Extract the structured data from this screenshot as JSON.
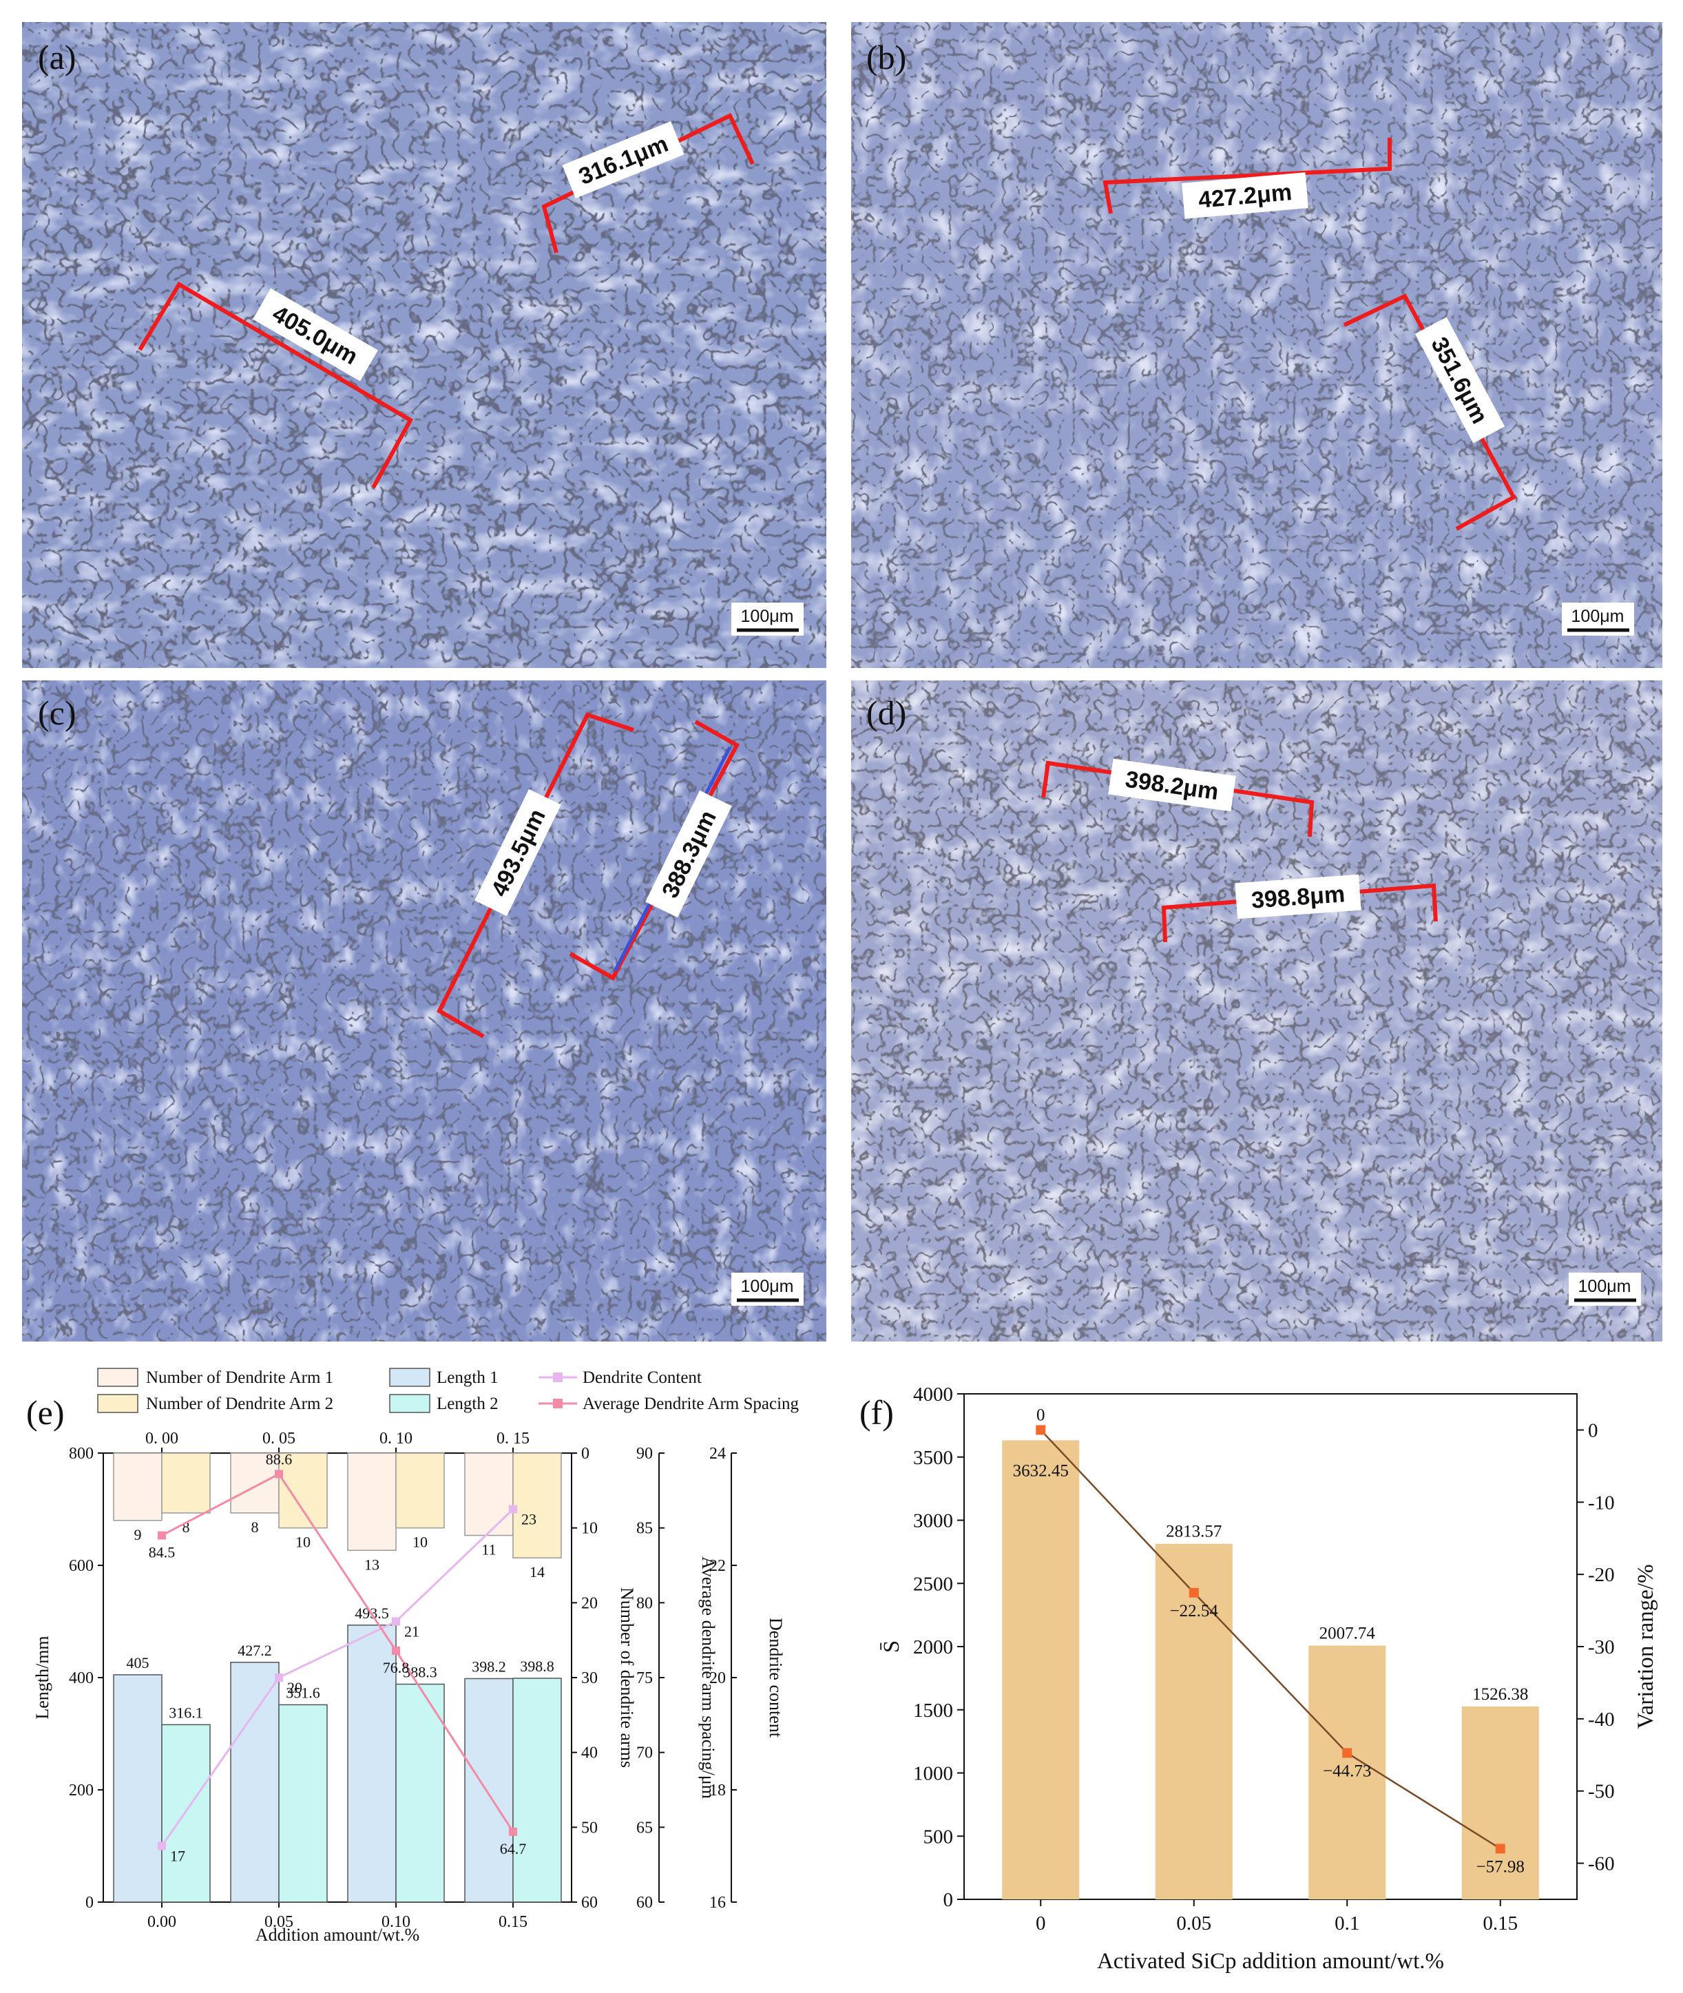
{
  "colors": {
    "micro_base": "#8e9ccb",
    "bracket": "#ee1c1c",
    "count1": "#fdf1e8",
    "count2": "#fdf0c9",
    "length1": "#d3e7f6",
    "length2": "#c8f6f2",
    "content_line": "#e8b6ee",
    "spacing_line": "#f58aa6",
    "f_bar": "#edc98f",
    "f_line": "#7b4a26",
    "f_marker": "#f26a2a"
  },
  "micrographs": [
    {
      "letter": "(a)",
      "scale": "100μm",
      "measurements": [
        "316.1μm",
        "405.0μm"
      ]
    },
    {
      "letter": "(b)",
      "scale": "100μm",
      "measurements": [
        "427.2μm",
        "351.6μm"
      ]
    },
    {
      "letter": "(c)",
      "scale": "100μm",
      "measurements": [
        "493.5μm",
        "388.3μm"
      ]
    },
    {
      "letter": "(d)",
      "scale": "100μm",
      "measurements": [
        "398.2μm",
        "398.8μm"
      ]
    }
  ],
  "chart_data": [
    {
      "panel": "(e)",
      "type": "bar",
      "categories": [
        "0.00",
        "0.05",
        "0.10",
        "0.15"
      ],
      "top_categories": [
        "0. 00",
        "0. 05",
        "0. 10",
        "0. 15"
      ],
      "xlabel": "Addition amount/wt.%",
      "ylabel_left": "Length/mm",
      "ylabel_counts": "Number of dendrite arms",
      "ylabel_spacing": "Average dendrite arm spacing/μm",
      "ylabel_content": "Dendrite content",
      "ylim_left": [
        0,
        800
      ],
      "ylim_counts": [
        0,
        60
      ],
      "ylim_spacing": [
        60,
        90
      ],
      "ylim_content": [
        16,
        24
      ],
      "left_ticks": [
        "0",
        "200",
        "400",
        "600",
        "800"
      ],
      "count_ticks": [
        "0",
        "10",
        "20",
        "30",
        "40",
        "50",
        "60"
      ],
      "spacing_ticks": [
        "60",
        "65",
        "70",
        "75",
        "80",
        "85",
        "90"
      ],
      "content_ticks": [
        "16",
        "18",
        "20",
        "22",
        "24"
      ],
      "legend": [
        "Number of Dendrite Arm 1",
        "Number of Dendrite Arm 2",
        "Length 1",
        "Length 2",
        "Dendrite Content",
        "Average Dendrite Arm Spacing"
      ],
      "count_series": [
        {
          "name": "Number of Dendrite Arm 1",
          "values": [
            9,
            8,
            13,
            11
          ]
        },
        {
          "name": "Number of Dendrite Arm 2",
          "values": [
            8,
            10,
            10,
            14
          ]
        }
      ],
      "length_series": [
        {
          "name": "Length 1",
          "values": [
            405,
            427.2,
            493.5,
            398.2
          ]
        },
        {
          "name": "Length 2",
          "values": [
            316.1,
            351.6,
            388.3,
            398.8
          ]
        }
      ],
      "length_labels": [
        [
          "405",
          "316.1"
        ],
        [
          "427.2",
          "351.6"
        ],
        [
          "493.5",
          "388.3"
        ],
        [
          "398.2",
          "398.8"
        ]
      ],
      "count_labels": [
        [
          "9",
          "8"
        ],
        [
          "8",
          "10"
        ],
        [
          "13",
          "10"
        ],
        [
          "11",
          "14"
        ]
      ],
      "content_series": {
        "name": "Dendrite Content",
        "values": [
          17,
          20,
          21,
          23
        ],
        "labels": [
          "17",
          "20",
          "21",
          "23"
        ]
      },
      "spacing_series": {
        "name": "Average Dendrite Arm Spacing",
        "values": [
          84.5,
          88.6,
          76.8,
          64.7
        ],
        "labels": [
          "84.5",
          "88.6",
          "76.8",
          "64.7"
        ]
      }
    },
    {
      "panel": "(f)",
      "type": "bar",
      "categories": [
        "0",
        "0.05",
        "0.1",
        "0.15"
      ],
      "xlabel": "Activated SiCp addition amount/wt.%",
      "ylabel": "S̄",
      "ylabel_right": "Variation range/%",
      "ylim": [
        0,
        4000
      ],
      "ylim_right": [
        -65,
        5
      ],
      "left_ticks": [
        "0",
        "500",
        "1000",
        "1500",
        "2000",
        "2500",
        "3000",
        "3500",
        "4000"
      ],
      "right_ticks": [
        "0",
        "-10",
        "-20",
        "-30",
        "-40",
        "-50",
        "-60"
      ],
      "bar_values": [
        3632.45,
        2813.57,
        2007.74,
        1526.38
      ],
      "bar_labels": [
        "3632.45",
        "2813.57",
        "2007.74",
        "1526.38"
      ],
      "line_values": [
        0,
        -22.54,
        -44.73,
        -57.98
      ],
      "line_labels": [
        "0",
        "−22.54",
        "−44.73",
        "−57.98"
      ]
    }
  ]
}
